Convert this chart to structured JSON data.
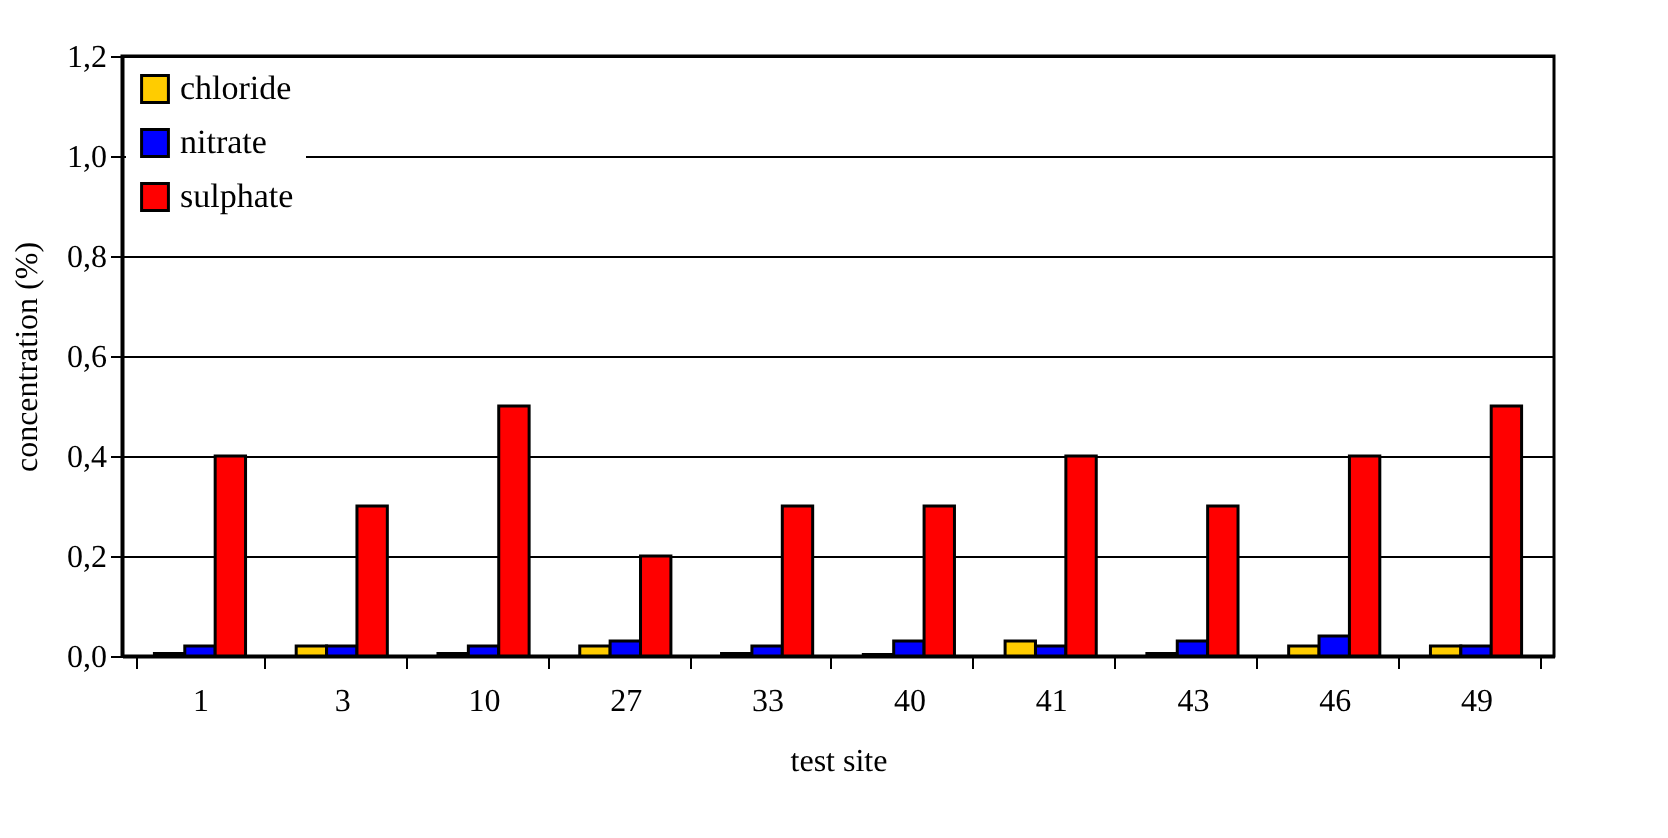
{
  "chart_data": {
    "type": "bar",
    "xlabel": "test site",
    "ylabel": "concentration (%)",
    "categories": [
      "1",
      "3",
      "10",
      "27",
      "33",
      "40",
      "41",
      "43",
      "46",
      "49"
    ],
    "series": [
      {
        "name": "chloride",
        "color": "#ffcc00",
        "values": [
          0.005,
          0.02,
          0.005,
          0.02,
          0.005,
          0.003,
          0.03,
          0.005,
          0.02,
          0.02
        ]
      },
      {
        "name": "nitrate",
        "color": "#0000ff",
        "values": [
          0.02,
          0.02,
          0.02,
          0.03,
          0.02,
          0.03,
          0.02,
          0.03,
          0.04,
          0.02
        ]
      },
      {
        "name": "sulphate",
        "color": "#ff0000",
        "values": [
          0.4,
          0.3,
          0.5,
          0.2,
          0.3,
          0.3,
          0.4,
          0.3,
          0.4,
          0.5
        ]
      }
    ],
    "ylim": [
      0,
      1.2
    ],
    "yticks": [
      {
        "value": 0,
        "label": "0,0"
      },
      {
        "value": 0.2,
        "label": "0,2"
      },
      {
        "value": 0.4,
        "label": "0,4"
      },
      {
        "value": 0.6,
        "label": "0,6"
      },
      {
        "value": 0.8,
        "label": "0,8"
      },
      {
        "value": 1.0,
        "label": "1,0"
      },
      {
        "value": 1.2,
        "label": "1,2"
      }
    ],
    "grid": "y",
    "legend": "top left"
  }
}
